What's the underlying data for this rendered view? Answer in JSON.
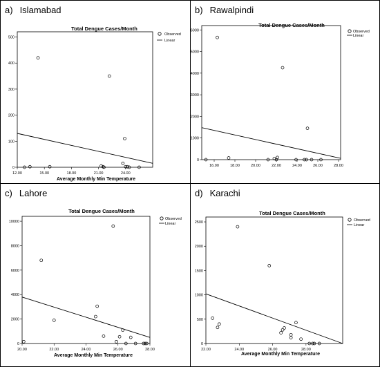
{
  "panels": [
    {
      "letter": "a)",
      "city": "Islamabad"
    },
    {
      "letter": "b)",
      "city": "Rawalpindi"
    },
    {
      "letter": "c)",
      "city": "Lahore"
    },
    {
      "letter": "d)",
      "city": "Karachi"
    }
  ],
  "chart_data": [
    {
      "type": "scatter",
      "title": "Total Dengue Cases/Month",
      "xlabel": "Average Monthly Min Temperature",
      "ylabel": "",
      "xlim": [
        12,
        27
      ],
      "ylim": [
        0,
        520
      ],
      "xticks": [
        "12.00",
        "15.00",
        "18.00",
        "21.00",
        "24.00"
      ],
      "xtick_values": [
        12,
        15,
        18,
        21,
        24
      ],
      "yticks": [
        "0",
        "100",
        "200",
        "300",
        "400",
        "500"
      ],
      "ytick_values": [
        0,
        100,
        200,
        300,
        400,
        500
      ],
      "legend": [
        "Observed",
        "Linear"
      ],
      "legend_position": "top-right",
      "series": [
        {
          "name": "Observed",
          "points": [
            [
              12.8,
              0
            ],
            [
              13.4,
              2
            ],
            [
              14.3,
              420
            ],
            [
              15.6,
              2
            ],
            [
              21.3,
              5
            ],
            [
              21.5,
              2
            ],
            [
              21.6,
              0
            ],
            [
              22.2,
              350
            ],
            [
              23.7,
              15
            ],
            [
              23.9,
              110
            ],
            [
              24.0,
              2
            ],
            [
              24.2,
              2
            ],
            [
              24.4,
              0
            ],
            [
              25.5,
              0
            ]
          ]
        },
        {
          "name": "Linear",
          "points": [
            [
              12,
              130
            ],
            [
              27,
              15
            ]
          ]
        }
      ]
    },
    {
      "type": "scatter",
      "title": "Total Dengue Cases/Month",
      "xlabel": "",
      "ylabel": "",
      "xlim": [
        14.8,
        28.2
      ],
      "ylim": [
        0,
        6200
      ],
      "xticks": [
        "16.00",
        "18.00",
        "20.00",
        "22.00",
        "24.00",
        "26.00",
        "28.00"
      ],
      "xtick_values": [
        16,
        18,
        20,
        22,
        24,
        26,
        28
      ],
      "yticks": [
        "0",
        "1000",
        "2000",
        "3000",
        "4000",
        "5000",
        "6000"
      ],
      "ytick_values": [
        0,
        1000,
        2000,
        3000,
        4000,
        5000,
        6000
      ],
      "legend": [
        "Observed",
        "Linear"
      ],
      "legend_position": "top-right",
      "series": [
        {
          "name": "Observed",
          "points": [
            [
              15.2,
              0
            ],
            [
              16.3,
              5650
            ],
            [
              17.4,
              80
            ],
            [
              21.2,
              0
            ],
            [
              21.8,
              50
            ],
            [
              22.0,
              0
            ],
            [
              22.1,
              100
            ],
            [
              22.6,
              4250
            ],
            [
              23.9,
              0
            ],
            [
              24.7,
              0
            ],
            [
              24.9,
              0
            ],
            [
              25.0,
              1450
            ],
            [
              25.4,
              0
            ],
            [
              26.3,
              0
            ]
          ]
        },
        {
          "name": "Linear",
          "points": [
            [
              14.8,
              1480
            ],
            [
              28.2,
              60
            ]
          ]
        }
      ]
    },
    {
      "type": "scatter",
      "title": "Total Dengue Cases/Month",
      "xlabel": "Average Monthly Min Temperature",
      "ylabel": "",
      "xlim": [
        20,
        28
      ],
      "ylim": [
        0,
        10400
      ],
      "xticks": [
        "20.00",
        "22.00",
        "24.00",
        "26.00",
        "28.00"
      ],
      "xtick_values": [
        20,
        22,
        24,
        26,
        28
      ],
      "yticks": [
        "0",
        "2000",
        "4000",
        "6000",
        "8000",
        "10000"
      ],
      "ytick_values": [
        0,
        2000,
        4000,
        6000,
        8000,
        10000
      ],
      "legend": [
        "Observed",
        "Linear"
      ],
      "legend_position": "top-right",
      "series": [
        {
          "name": "Observed",
          "points": [
            [
              20.1,
              150
            ],
            [
              21.2,
              6800
            ],
            [
              22.0,
              1900
            ],
            [
              24.6,
              2200
            ],
            [
              24.7,
              3050
            ],
            [
              25.1,
              600
            ],
            [
              25.7,
              9600
            ],
            [
              25.9,
              150
            ],
            [
              26.1,
              550
            ],
            [
              26.3,
              1100
            ],
            [
              26.5,
              0
            ],
            [
              26.8,
              500
            ],
            [
              27.1,
              0
            ],
            [
              27.6,
              0
            ],
            [
              27.7,
              0
            ],
            [
              27.8,
              0
            ]
          ]
        },
        {
          "name": "Linear",
          "points": [
            [
              20,
              3800
            ],
            [
              28,
              500
            ]
          ]
        }
      ]
    },
    {
      "type": "scatter",
      "title": "Total Dengue Cases/Month",
      "xlabel": "Average Monthly Min Temperature",
      "ylabel": "",
      "xlim": [
        22,
        30.2
      ],
      "ylim": [
        0,
        2600
      ],
      "xticks": [
        "22.00",
        "24.00",
        "26.00",
        "28.00"
      ],
      "xtick_values": [
        22,
        24,
        26,
        28
      ],
      "yticks": [
        "0",
        "500",
        "1000",
        "1500",
        "2000",
        "2500"
      ],
      "ytick_values": [
        0,
        500,
        1000,
        1500,
        2000,
        2500
      ],
      "legend": [
        "Observed",
        "Linear"
      ],
      "legend_position": "top-right",
      "series": [
        {
          "name": "Observed",
          "points": [
            [
              22.4,
              520
            ],
            [
              22.7,
              330
            ],
            [
              22.8,
              400
            ],
            [
              23.9,
              2400
            ],
            [
              25.8,
              1600
            ],
            [
              26.5,
              220
            ],
            [
              26.6,
              280
            ],
            [
              26.7,
              320
            ],
            [
              27.1,
              120
            ],
            [
              27.1,
              180
            ],
            [
              27.4,
              430
            ],
            [
              27.7,
              90
            ],
            [
              28.2,
              0
            ],
            [
              28.4,
              0
            ],
            [
              28.5,
              0
            ],
            [
              28.8,
              0
            ]
          ]
        },
        {
          "name": "Linear",
          "points": [
            [
              22,
              1020
            ],
            [
              30.2,
              0
            ]
          ]
        }
      ]
    }
  ]
}
